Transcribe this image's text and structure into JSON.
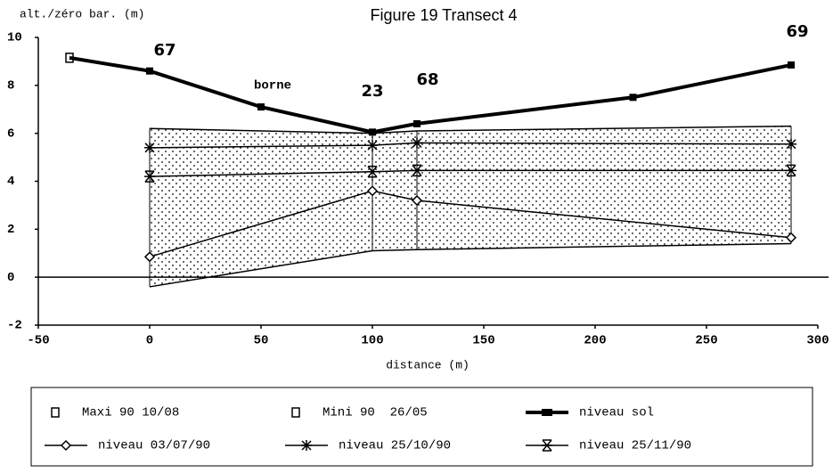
{
  "chart_data": {
    "type": "line",
    "title": "Figure 19 Transect 4",
    "y_label": "alt./zéro bar. (m)",
    "x_label": "distance (m)",
    "annotations": [
      "67",
      "borne",
      "23",
      "68",
      "69"
    ],
    "xlim": [
      -50,
      300
    ],
    "xticks": [
      -50,
      0,
      50,
      100,
      150,
      200,
      250,
      300
    ],
    "ylim": [
      -2,
      10
    ],
    "yticks": [
      -2,
      0,
      2,
      4,
      6,
      8,
      10
    ],
    "grid": false,
    "legend": "bottom",
    "series": [
      {
        "name": "Maxi 90 10/08",
        "color": "#000",
        "marker": "hollow-square",
        "x": [
          0,
          100,
          120,
          288
        ],
        "values": [
          6.2,
          6.0,
          6.1,
          6.3
        ]
      },
      {
        "name": "Mini 90  26/05",
        "color": "#000",
        "marker": "hollow-square",
        "x": [
          0,
          100,
          120,
          288
        ],
        "values": [
          -0.4,
          1.1,
          1.15,
          1.4
        ]
      },
      {
        "name": "niveau sol",
        "color": "#000",
        "marker": "filled-square",
        "x": [
          -36,
          0,
          50,
          100,
          120,
          217,
          288
        ],
        "values": [
          9.15,
          8.6,
          7.1,
          6.05,
          6.4,
          7.5,
          8.85
        ]
      },
      {
        "name": "niveau 03/07/90",
        "color": "#000",
        "marker": "diamond",
        "x": [
          0,
          100,
          120,
          288
        ],
        "values": [
          0.85,
          3.6,
          3.2,
          1.65
        ]
      },
      {
        "name": "niveau 25/10/90",
        "color": "#000",
        "marker": "asterisk",
        "x": [
          0,
          100,
          120,
          288
        ],
        "values": [
          5.4,
          5.5,
          5.6,
          5.55
        ]
      },
      {
        "name": "niveau 25/11/90",
        "color": "#000",
        "marker": "hourglass",
        "x": [
          0,
          100,
          120,
          288
        ],
        "values": [
          4.2,
          4.4,
          4.45,
          4.45
        ]
      }
    ]
  }
}
